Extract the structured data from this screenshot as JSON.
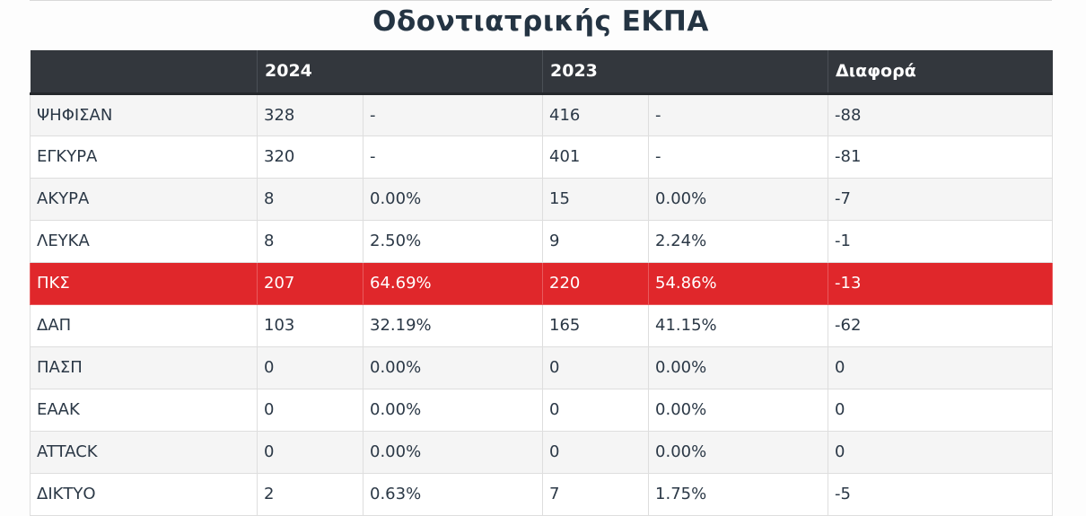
{
  "page": {
    "title": "Οδοντιατρικής ΕΚΠΑ",
    "highlight_color": "#e0272b",
    "header_color": "#33373d"
  },
  "table": {
    "headers": [
      "",
      "2024",
      "2023",
      "Διαφορά"
    ],
    "rows": [
      {
        "label": "ΨΗΦΙΣΑΝ",
        "v2024": "328",
        "p2024": "-",
        "v2023": "416",
        "p2023": "-",
        "diff": "-88"
      },
      {
        "label": "ΕΓΚΥΡΑ",
        "v2024": "320",
        "p2024": "-",
        "v2023": "401",
        "p2023": "-",
        "diff": "-81"
      },
      {
        "label": "ΑΚΥΡΑ",
        "v2024": "8",
        "p2024": "0.00%",
        "v2023": "15",
        "p2023": "0.00%",
        "diff": "-7"
      },
      {
        "label": "ΛΕΥΚΑ",
        "v2024": "8",
        "p2024": "2.50%",
        "v2023": "9",
        "p2023": "2.24%",
        "diff": "-1"
      },
      {
        "label": "ΠΚΣ",
        "v2024": "207",
        "p2024": "64.69%",
        "v2023": "220",
        "p2023": "54.86%",
        "diff": "-13"
      },
      {
        "label": "ΔΑΠ",
        "v2024": "103",
        "p2024": "32.19%",
        "v2023": "165",
        "p2023": "41.15%",
        "diff": "-62"
      },
      {
        "label": "ΠΑΣΠ",
        "v2024": "0",
        "p2024": "0.00%",
        "v2023": "0",
        "p2023": "0.00%",
        "diff": "0"
      },
      {
        "label": "ΕΑΑΚ",
        "v2024": "0",
        "p2024": "0.00%",
        "v2023": "0",
        "p2023": "0.00%",
        "diff": "0"
      },
      {
        "label": "ATTACK",
        "v2024": "0",
        "p2024": "0.00%",
        "v2023": "0",
        "p2023": "0.00%",
        "diff": "0"
      },
      {
        "label": "ΔΙΚΤΥΟ",
        "v2024": "2",
        "p2024": "0.63%",
        "v2023": "7",
        "p2023": "1.75%",
        "diff": "-5"
      }
    ]
  }
}
